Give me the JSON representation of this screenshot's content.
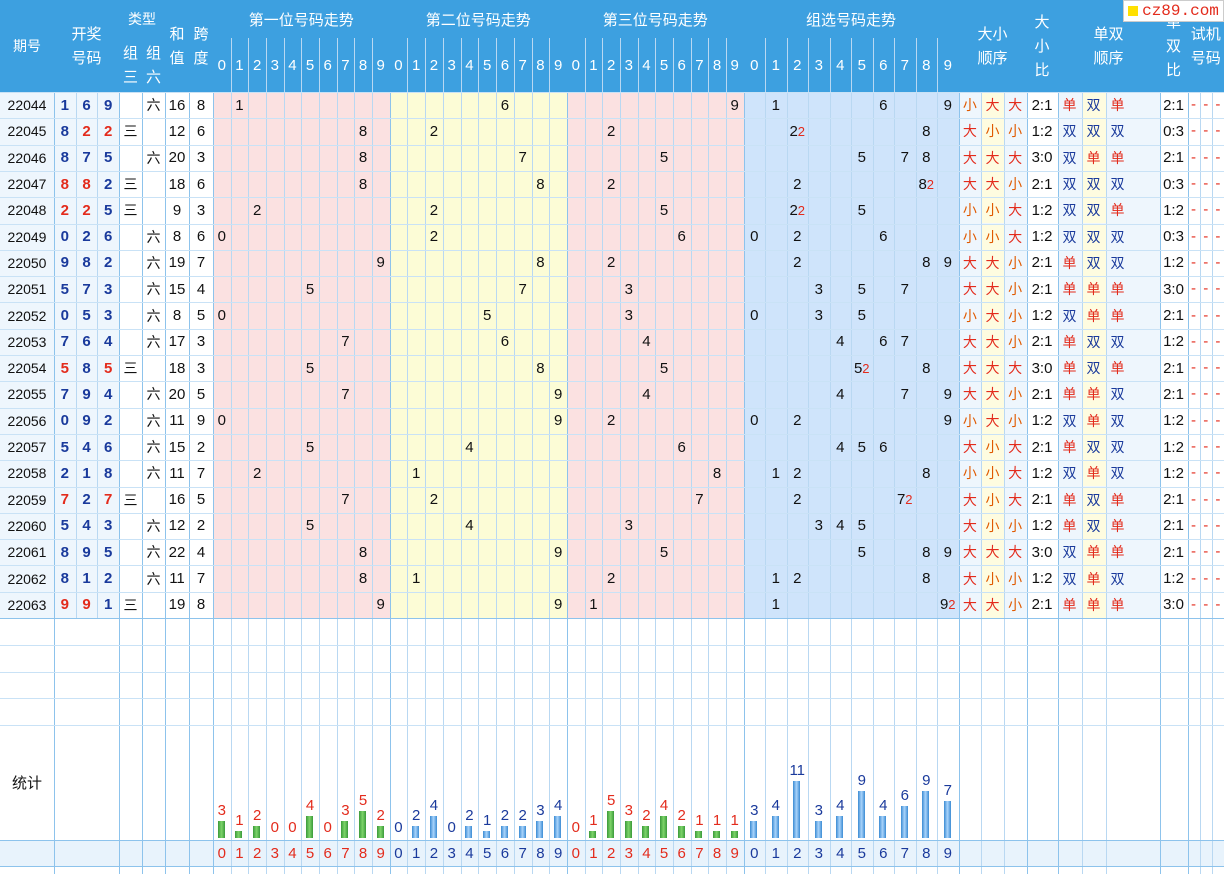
{
  "header": {
    "period": "期号",
    "draw": "开奖号码",
    "type": "类型",
    "type_g3": "组三",
    "type_g6": "组六",
    "sum": "和值",
    "span": "跨度",
    "pos1": "第一位号码走势",
    "pos2": "第二位号码走势",
    "pos3": "第三位号码走势",
    "group": "组选号码走势",
    "size_order": "大小顺序",
    "size_ratio": "大小比",
    "parity_order": "单双顺序",
    "parity_ratio": "单双比",
    "trial": "试机号码",
    "digits": [
      "0",
      "1",
      "2",
      "3",
      "4",
      "5",
      "6",
      "7",
      "8",
      "9"
    ]
  },
  "logo": "cz89.com",
  "rows": [
    {
      "period": "22044",
      "d": [
        1,
        6,
        9
      ],
      "type": "六",
      "sum": 16,
      "span": 8,
      "g": [
        [
          1,
          1
        ],
        [
          6,
          1
        ],
        [
          9,
          1
        ]
      ],
      "size": [
        "小",
        "大",
        "大"
      ],
      "sr": "2:1",
      "par": [
        "单",
        "双",
        "单"
      ],
      "pr": "2:1"
    },
    {
      "period": "22045",
      "d": [
        8,
        2,
        2
      ],
      "type": "三",
      "sum": 12,
      "span": 6,
      "g": [
        [
          2,
          2
        ],
        [
          8,
          1
        ]
      ],
      "size": [
        "大",
        "小",
        "小"
      ],
      "sr": "1:2",
      "par": [
        "双",
        "双",
        "双"
      ],
      "pr": "0:3"
    },
    {
      "period": "22046",
      "d": [
        8,
        7,
        5
      ],
      "type": "六",
      "sum": 20,
      "span": 3,
      "g": [
        [
          5,
          1
        ],
        [
          7,
          1
        ],
        [
          8,
          1
        ]
      ],
      "size": [
        "大",
        "大",
        "大"
      ],
      "sr": "3:0",
      "par": [
        "双",
        "单",
        "单"
      ],
      "pr": "2:1"
    },
    {
      "period": "22047",
      "d": [
        8,
        8,
        2
      ],
      "type": "三",
      "sum": 18,
      "span": 6,
      "g": [
        [
          2,
          1
        ],
        [
          8,
          2
        ]
      ],
      "size": [
        "大",
        "大",
        "小"
      ],
      "sr": "2:1",
      "par": [
        "双",
        "双",
        "双"
      ],
      "pr": "0:3"
    },
    {
      "period": "22048",
      "d": [
        2,
        2,
        5
      ],
      "type": "三",
      "sum": 9,
      "span": 3,
      "g": [
        [
          2,
          2
        ],
        [
          5,
          1
        ]
      ],
      "size": [
        "小",
        "小",
        "大"
      ],
      "sr": "1:2",
      "par": [
        "双",
        "双",
        "单"
      ],
      "pr": "1:2"
    },
    {
      "period": "22049",
      "d": [
        0,
        2,
        6
      ],
      "type": "六",
      "sum": 8,
      "span": 6,
      "g": [
        [
          0,
          1
        ],
        [
          2,
          1
        ],
        [
          6,
          1
        ]
      ],
      "size": [
        "小",
        "小",
        "大"
      ],
      "sr": "1:2",
      "par": [
        "双",
        "双",
        "双"
      ],
      "pr": "0:3"
    },
    {
      "period": "22050",
      "d": [
        9,
        8,
        2
      ],
      "type": "六",
      "sum": 19,
      "span": 7,
      "g": [
        [
          2,
          1
        ],
        [
          8,
          1
        ],
        [
          9,
          1
        ]
      ],
      "size": [
        "大",
        "大",
        "小"
      ],
      "sr": "2:1",
      "par": [
        "单",
        "双",
        "双"
      ],
      "pr": "1:2"
    },
    {
      "period": "22051",
      "d": [
        5,
        7,
        3
      ],
      "type": "六",
      "sum": 15,
      "span": 4,
      "g": [
        [
          3,
          1
        ],
        [
          5,
          1
        ],
        [
          7,
          1
        ]
      ],
      "size": [
        "大",
        "大",
        "小"
      ],
      "sr": "2:1",
      "par": [
        "单",
        "单",
        "单"
      ],
      "pr": "3:0"
    },
    {
      "period": "22052",
      "d": [
        0,
        5,
        3
      ],
      "type": "六",
      "sum": 8,
      "span": 5,
      "g": [
        [
          0,
          1
        ],
        [
          3,
          1
        ],
        [
          5,
          1
        ]
      ],
      "size": [
        "小",
        "大",
        "小"
      ],
      "sr": "1:2",
      "par": [
        "双",
        "单",
        "单"
      ],
      "pr": "2:1"
    },
    {
      "period": "22053",
      "d": [
        7,
        6,
        4
      ],
      "type": "六",
      "sum": 17,
      "span": 3,
      "g": [
        [
          4,
          1
        ],
        [
          6,
          1
        ],
        [
          7,
          1
        ]
      ],
      "size": [
        "大",
        "大",
        "小"
      ],
      "sr": "2:1",
      "par": [
        "单",
        "双",
        "双"
      ],
      "pr": "1:2"
    },
    {
      "period": "22054",
      "d": [
        5,
        8,
        5
      ],
      "type": "三",
      "sum": 18,
      "span": 3,
      "g": [
        [
          5,
          2
        ],
        [
          8,
          1
        ]
      ],
      "size": [
        "大",
        "大",
        "大"
      ],
      "sr": "3:0",
      "par": [
        "单",
        "双",
        "单"
      ],
      "pr": "2:1"
    },
    {
      "period": "22055",
      "d": [
        7,
        9,
        4
      ],
      "type": "六",
      "sum": 20,
      "span": 5,
      "g": [
        [
          4,
          1
        ],
        [
          7,
          1
        ],
        [
          9,
          1
        ]
      ],
      "size": [
        "大",
        "大",
        "小"
      ],
      "sr": "2:1",
      "par": [
        "单",
        "单",
        "双"
      ],
      "pr": "2:1"
    },
    {
      "period": "22056",
      "d": [
        0,
        9,
        2
      ],
      "type": "六",
      "sum": 11,
      "span": 9,
      "g": [
        [
          0,
          1
        ],
        [
          2,
          1
        ],
        [
          9,
          1
        ]
      ],
      "size": [
        "小",
        "大",
        "小"
      ],
      "sr": "1:2",
      "par": [
        "双",
        "单",
        "双"
      ],
      "pr": "1:2"
    },
    {
      "period": "22057",
      "d": [
        5,
        4,
        6
      ],
      "type": "六",
      "sum": 15,
      "span": 2,
      "g": [
        [
          4,
          1
        ],
        [
          5,
          1
        ],
        [
          6,
          1
        ]
      ],
      "size": [
        "大",
        "小",
        "大"
      ],
      "sr": "2:1",
      "par": [
        "单",
        "双",
        "双"
      ],
      "pr": "1:2"
    },
    {
      "period": "22058",
      "d": [
        2,
        1,
        8
      ],
      "type": "六",
      "sum": 11,
      "span": 7,
      "g": [
        [
          1,
          1
        ],
        [
          2,
          1
        ],
        [
          8,
          1
        ]
      ],
      "size": [
        "小",
        "小",
        "大"
      ],
      "sr": "1:2",
      "par": [
        "双",
        "单",
        "双"
      ],
      "pr": "1:2"
    },
    {
      "period": "22059",
      "d": [
        7,
        2,
        7
      ],
      "type": "三",
      "sum": 16,
      "span": 5,
      "g": [
        [
          2,
          1
        ],
        [
          7,
          2
        ]
      ],
      "size": [
        "大",
        "小",
        "大"
      ],
      "sr": "2:1",
      "par": [
        "单",
        "双",
        "单"
      ],
      "pr": "2:1"
    },
    {
      "period": "22060",
      "d": [
        5,
        4,
        3
      ],
      "type": "六",
      "sum": 12,
      "span": 2,
      "g": [
        [
          3,
          1
        ],
        [
          4,
          1
        ],
        [
          5,
          1
        ]
      ],
      "size": [
        "大",
        "小",
        "小"
      ],
      "sr": "1:2",
      "par": [
        "单",
        "双",
        "单"
      ],
      "pr": "2:1"
    },
    {
      "period": "22061",
      "d": [
        8,
        9,
        5
      ],
      "type": "六",
      "sum": 22,
      "span": 4,
      "g": [
        [
          5,
          1
        ],
        [
          8,
          1
        ],
        [
          9,
          1
        ]
      ],
      "size": [
        "大",
        "大",
        "大"
      ],
      "sr": "3:0",
      "par": [
        "双",
        "单",
        "单"
      ],
      "pr": "2:1"
    },
    {
      "period": "22062",
      "d": [
        8,
        1,
        2
      ],
      "type": "六",
      "sum": 11,
      "span": 7,
      "g": [
        [
          1,
          1
        ],
        [
          2,
          1
        ],
        [
          8,
          1
        ]
      ],
      "size": [
        "大",
        "小",
        "小"
      ],
      "sr": "1:2",
      "par": [
        "双",
        "单",
        "双"
      ],
      "pr": "1:2"
    },
    {
      "period": "22063",
      "d": [
        9,
        9,
        1
      ],
      "type": "三",
      "sum": 19,
      "span": 8,
      "g": [
        [
          1,
          1
        ],
        [
          9,
          2
        ]
      ],
      "size": [
        "大",
        "大",
        "小"
      ],
      "sr": "2:1",
      "par": [
        "单",
        "单",
        "单"
      ],
      "pr": "3:0"
    }
  ],
  "trial_placeholder": "-",
  "stats": {
    "label": "统计",
    "pos1": [
      3,
      1,
      2,
      0,
      0,
      4,
      0,
      3,
      5,
      2
    ],
    "pos2": [
      0,
      2,
      4,
      0,
      2,
      1,
      2,
      2,
      3,
      4
    ],
    "pos3": [
      0,
      1,
      5,
      3,
      2,
      4,
      2,
      1,
      1,
      1
    ],
    "group": [
      3,
      4,
      11,
      3,
      4,
      9,
      4,
      6,
      9,
      7
    ]
  },
  "colors": {
    "header": "#3da0e0",
    "pos1_bg": "#fbe1e1",
    "pos2_bg": "#fcfcd6",
    "pos3_bg": "#cfe4fb",
    "red": "#e32b1c",
    "blue": "#1a3a9c"
  }
}
